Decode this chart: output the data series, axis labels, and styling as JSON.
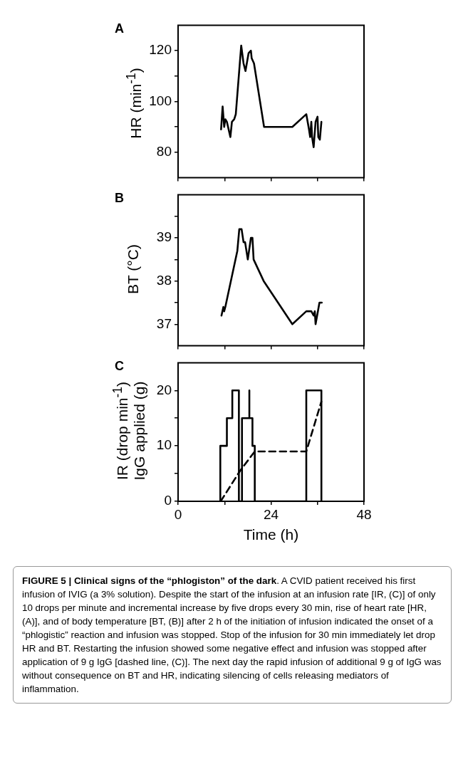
{
  "chart_data": [
    {
      "type": "line",
      "title": "A",
      "ylabel": "HR (min$^{-1}$)",
      "xlim": [
        0,
        48
      ],
      "xticks": [
        {
          "value": 0,
          "label": null
        },
        {
          "value": 12,
          "label": null
        },
        {
          "value": 24,
          "label": null
        },
        {
          "value": 36,
          "label": null
        },
        {
          "value": 48,
          "label": null
        }
      ],
      "ylim": [
        70,
        130
      ],
      "yticks": [
        80,
        {
          "value": 90,
          "label": null
        },
        100,
        {
          "value": 110,
          "label": null
        },
        120
      ],
      "tick_labels": "y",
      "grid": false,
      "legend": false,
      "marker": "none",
      "series": [
        {
          "color": "#000000",
          "x": [
            11.1,
            11.5,
            11.9,
            12.2,
            12.6,
            13.5,
            13.9,
            14.5,
            14.9,
            16.3,
            16.9,
            17.4,
            18.2,
            18.8,
            19.0,
            19.6,
            22.2,
            29.5,
            33.1,
            33.8,
            34.1,
            34.4,
            34.6,
            35.0,
            35.5,
            36.0,
            36.2,
            36.6,
            37.0
          ],
          "values": [
            89,
            98,
            90,
            93,
            92,
            86,
            92,
            93,
            95,
            122,
            115,
            112,
            119,
            120,
            117,
            115,
            90,
            90,
            95,
            89,
            86,
            92,
            86,
            82,
            92,
            94,
            86,
            85,
            92
          ]
        }
      ]
    },
    {
      "type": "line",
      "title": "B",
      "ylabel": "BT (°C)",
      "xlim": [
        0,
        48
      ],
      "xticks": [
        {
          "value": 0,
          "label": null
        },
        {
          "value": 12,
          "label": null
        },
        {
          "value": 24,
          "label": null
        },
        {
          "value": 36,
          "label": null
        },
        {
          "value": 48,
          "label": null
        }
      ],
      "ylim": [
        36.5,
        40
      ],
      "yticks": [
        37,
        {
          "value": 37.5,
          "label": null
        },
        38,
        {
          "value": 38.5,
          "label": null
        },
        39,
        {
          "value": 39.5,
          "label": null
        }
      ],
      "tick_labels": "y",
      "grid": false,
      "legend": false,
      "marker": "none",
      "series": [
        {
          "color": "#000000",
          "x": [
            11.2,
            11.7,
            11.9,
            12.2,
            15.3,
            15.8,
            16.4,
            16.9,
            17.3,
            18.0,
            18.8,
            19.2,
            19.5,
            22.1,
            29.5,
            33.1,
            34.4,
            35.0,
            35.3,
            35.5,
            36.5,
            37.1
          ],
          "values": [
            37.2,
            37.4,
            37.3,
            37.4,
            38.7,
            39.2,
            39.2,
            38.9,
            38.9,
            38.5,
            39.0,
            39.0,
            38.5,
            38.0,
            37.0,
            37.3,
            37.3,
            37.2,
            37.3,
            37.0,
            37.5,
            37.5
          ]
        }
      ]
    },
    {
      "type": "line",
      "title": "C",
      "xlabel": "Time (h)",
      "ylabel": "IR (drop min$^{-1}$)\nIgG applied (g)",
      "xlim": [
        0,
        48
      ],
      "xticks": [
        0,
        {
          "value": 12,
          "label": null
        },
        24,
        {
          "value": 36,
          "label": null
        },
        48
      ],
      "ylim": [
        0,
        25
      ],
      "yticks": [
        0,
        {
          "value": 5,
          "label": null
        },
        10,
        {
          "value": 15,
          "label": null
        },
        20
      ],
      "grid": false,
      "legend": false,
      "marker": "none",
      "series": [
        {
          "color": "#000000",
          "line_style": "solid",
          "x": [
            10.9,
            10.9,
            12.6,
            12.6,
            14.0,
            14.0,
            15.7,
            15.7,
            16.5,
            16.5,
            18.4,
            18.4,
            18.4,
            19.2,
            19.2,
            19.8,
            19.8,
            33.1,
            33.1,
            37.0,
            37.0
          ],
          "values": [
            0,
            10,
            10,
            15,
            15,
            20,
            20,
            0,
            0,
            15,
            15,
            20,
            15,
            15,
            10,
            10,
            0,
            0,
            20,
            20,
            0
          ]
        },
        {
          "color": "#000000",
          "line_style": "dashed",
          "x": [
            11.0,
            16.0,
            19.8,
            33.1,
            37.0
          ],
          "values": [
            0,
            5.5,
            9,
            9,
            18
          ]
        }
      ],
      "annotations": [
        "FIGURE 5 | Clinical signs of the “phlogiston” of the dark",
        ". A CVID patient received his first infusion of IVIG (a 3% solution). Despite the start of the infusion at an infusion rate [IR, (C)] of only 10 drops per minute and incremental increase by five drops every 30 min, rise of heart rate [HR, (A)], and of body temperature [BT, (B)] after 2 h of the initiation of infusion indicated the onset of a “phlogistic” reaction and infusion was stopped. Stop of the infusion for 30 min immediately let drop HR and BT. Restarting the infusion showed some negative effect and infusion was stopped after application of 9 g IgG [dashed line, (C)]. The next day the rapid infusion of additional 9 g of IgG was without consequence on BT and HR, indicating silencing of cells releasing mediators of inflammation."
      ]
    }
  ]
}
